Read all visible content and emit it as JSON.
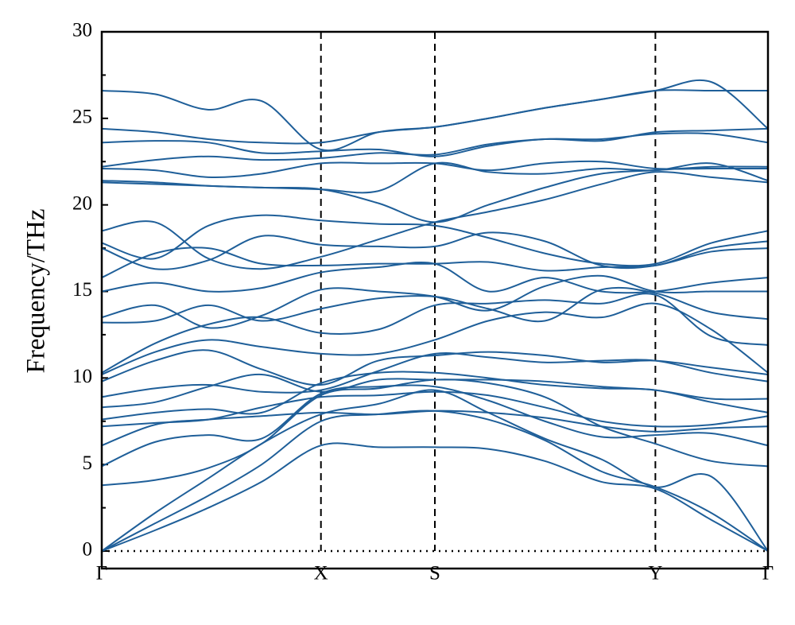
{
  "chart_data": {
    "type": "line",
    "y_label": "Frequency/THz",
    "color": "#1f5f99",
    "xlim": [
      0,
      1
    ],
    "xticks": [
      {
        "value": 0,
        "label": "Γ"
      },
      {
        "value": 0.329,
        "label": "X"
      },
      {
        "value": 0.5,
        "label": "S"
      },
      {
        "value": 0.831,
        "label": "Y"
      },
      {
        "value": 1,
        "label": "Γ"
      }
    ],
    "ylim": [
      0,
      30
    ],
    "yticks": [
      0,
      5,
      10,
      15,
      20,
      25,
      30
    ],
    "yminor_ticks": [
      2.5,
      7.5,
      12.5,
      17.5,
      22.5,
      27.5
    ],
    "vertical_dashed_lines": true,
    "zero_line": true,
    "x": [
      0,
      0.08,
      0.16,
      0.24,
      0.329,
      0.415,
      0.5,
      0.58,
      0.665,
      0.75,
      0.831,
      0.915,
      1
    ],
    "series": [
      {
        "values": [
          0,
          1.2,
          2.5,
          4.0,
          6.1,
          6.0,
          6.0,
          5.9,
          5.2,
          4.0,
          3.6,
          1.8,
          0
        ]
      },
      {
        "values": [
          0,
          1.6,
          3.2,
          5.0,
          7.5,
          7.9,
          8.1,
          7.6,
          6.4,
          4.6,
          3.7,
          2.2,
          0
        ]
      },
      {
        "values": [
          0,
          2.2,
          4.2,
          6.2,
          7.9,
          8.5,
          9.3,
          8.0,
          6.5,
          5.3,
          3.7,
          4.3,
          0
        ]
      },
      {
        "values": [
          3.8,
          4.1,
          4.8,
          6.2,
          9.0,
          9.4,
          9.9,
          9.7,
          8.9,
          7.2,
          6.2,
          5.2,
          4.9
        ]
      },
      {
        "values": [
          4.9,
          6.3,
          6.7,
          6.5,
          9.1,
          9.5,
          9.5,
          8.7,
          7.5,
          6.6,
          6.7,
          6.8,
          6.1
        ]
      },
      {
        "values": [
          6.1,
          7.3,
          7.6,
          7.8,
          8.0,
          7.9,
          8.1,
          8.0,
          7.7,
          7.2,
          6.9,
          7.1,
          7.2
        ]
      },
      {
        "values": [
          7.2,
          7.4,
          7.6,
          8.3,
          8.9,
          9.0,
          9.2,
          9.0,
          8.3,
          7.5,
          7.2,
          7.3,
          7.8
        ]
      },
      {
        "values": [
          7.6,
          8.0,
          8.2,
          8.0,
          9.7,
          10.3,
          10.3,
          10.0,
          9.6,
          9.4,
          9.3,
          8.6,
          8.0
        ]
      },
      {
        "values": [
          8.3,
          8.6,
          9.5,
          10.2,
          9.2,
          9.9,
          9.9,
          9.9,
          9.8,
          9.5,
          9.3,
          8.8,
          8.8
        ]
      },
      {
        "values": [
          8.9,
          9.4,
          9.6,
          9.2,
          9.3,
          10.4,
          11.4,
          11.2,
          10.9,
          11.0,
          11.0,
          10.3,
          9.8
        ]
      },
      {
        "values": [
          9.8,
          11.0,
          11.6,
          10.5,
          9.6,
          11.0,
          11.3,
          11.5,
          11.3,
          10.9,
          11.0,
          10.6,
          10.2
        ]
      },
      {
        "values": [
          10.2,
          11.5,
          12.2,
          11.8,
          11.4,
          11.4,
          12.2,
          13.3,
          13.8,
          13.5,
          14.3,
          12.8,
          10.3
        ]
      },
      {
        "values": [
          10.3,
          12.0,
          13.1,
          13.5,
          12.6,
          12.8,
          14.2,
          14.3,
          14.5,
          14.3,
          14.8,
          12.4,
          11.9
        ]
      },
      {
        "values": [
          13.2,
          13.3,
          14.2,
          13.3,
          14.0,
          14.6,
          14.7,
          14.0,
          13.3,
          15.1,
          14.9,
          13.8,
          13.4
        ]
      },
      {
        "values": [
          13.5,
          14.2,
          12.9,
          13.6,
          15.1,
          15.0,
          14.7,
          13.9,
          15.3,
          15.9,
          15.0,
          15.0,
          15.0
        ]
      },
      {
        "values": [
          15.0,
          15.5,
          15.0,
          15.2,
          16.1,
          16.4,
          16.6,
          15.0,
          15.8,
          15.0,
          15.0,
          15.5,
          15.8
        ]
      },
      {
        "values": [
          15.8,
          17.2,
          17.5,
          16.6,
          16.5,
          16.6,
          16.6,
          16.7,
          16.2,
          16.4,
          16.5,
          17.3,
          17.5
        ]
      },
      {
        "values": [
          17.5,
          16.3,
          16.8,
          18.2,
          17.7,
          17.6,
          17.6,
          18.4,
          17.9,
          16.5,
          16.5,
          17.5,
          17.9
        ]
      },
      {
        "values": [
          17.8,
          16.9,
          18.8,
          19.4,
          19.1,
          18.9,
          18.8,
          18.1,
          17.2,
          16.6,
          16.6,
          17.8,
          18.5
        ]
      },
      {
        "values": [
          18.5,
          19.0,
          16.9,
          16.3,
          17.0,
          18.0,
          19.0,
          19.6,
          20.3,
          21.2,
          21.9,
          21.6,
          21.3
        ]
      },
      {
        "values": [
          21.3,
          21.2,
          21.1,
          21.0,
          20.9,
          20.1,
          19.0,
          20.0,
          21.0,
          21.8,
          22.0,
          22.2,
          22.2
        ]
      },
      {
        "values": [
          21.4,
          21.3,
          21.1,
          21.0,
          20.9,
          20.8,
          22.4,
          21.9,
          21.8,
          22.1,
          22.0,
          22.4,
          21.4
        ]
      },
      {
        "values": [
          22.1,
          22.0,
          21.6,
          21.8,
          22.4,
          22.4,
          22.4,
          22.0,
          22.4,
          22.5,
          22.1,
          22.1,
          22.1
        ]
      },
      {
        "values": [
          22.2,
          22.6,
          22.8,
          22.6,
          22.7,
          23.0,
          22.9,
          23.5,
          23.8,
          23.8,
          24.1,
          24.1,
          23.6
        ]
      },
      {
        "values": [
          23.6,
          23.7,
          23.6,
          23.0,
          23.1,
          23.2,
          22.8,
          23.4,
          23.8,
          23.7,
          24.2,
          24.3,
          24.4
        ]
      },
      {
        "values": [
          24.4,
          24.2,
          23.8,
          23.6,
          23.6,
          24.2,
          24.5,
          25.0,
          25.6,
          26.1,
          26.6,
          27.1,
          24.4
        ]
      },
      {
        "values": [
          26.6,
          26.4,
          25.5,
          26.0,
          23.2,
          24.2,
          24.5,
          25.0,
          25.6,
          26.1,
          26.6,
          26.6,
          26.6
        ]
      }
    ]
  }
}
